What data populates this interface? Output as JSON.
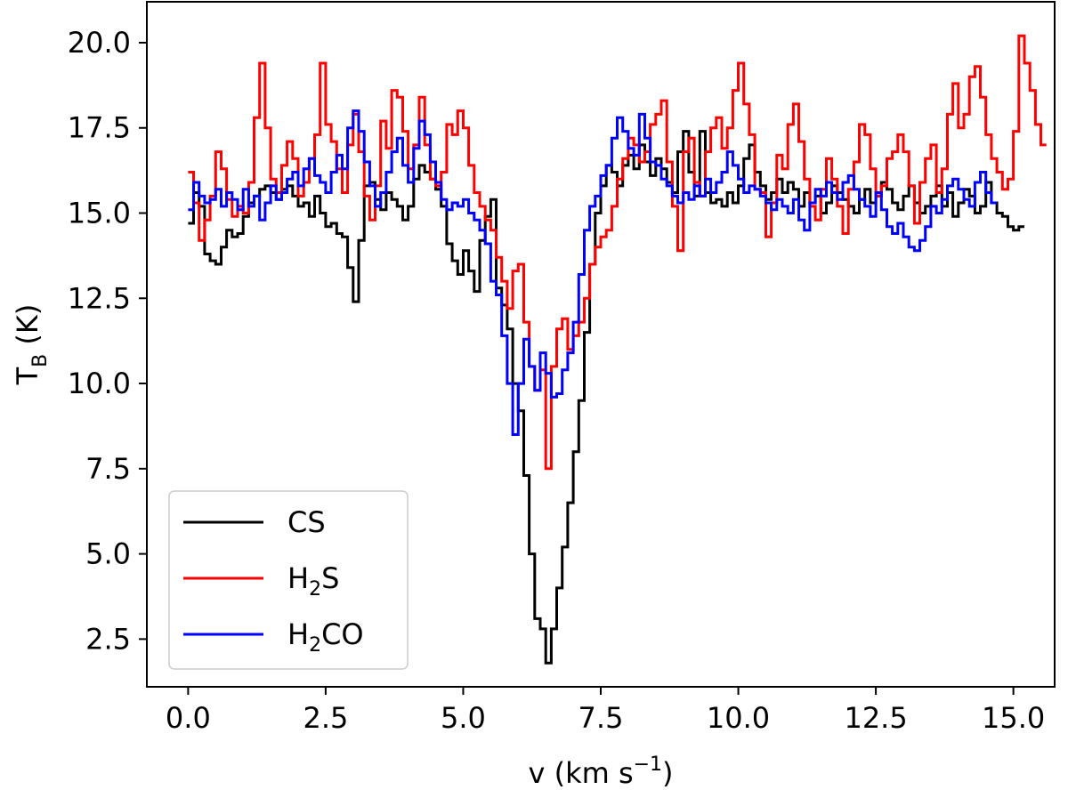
{
  "chart_data": {
    "type": "line",
    "step": true,
    "title": "",
    "xlabel": "v (km s",
    "xlabel_sup": "−1",
    "xlabel_close": ")",
    "ylabel": "T",
    "ylabel_sub": "B",
    "ylabel_tail": " (K)",
    "xlim": [
      -0.75,
      15.75
    ],
    "ylim": [
      1.1,
      21.2
    ],
    "xticks": [
      0.0,
      2.5,
      5.0,
      7.5,
      10.0,
      12.5,
      15.0
    ],
    "xtick_labels": [
      "0.0",
      "2.5",
      "5.0",
      "7.5",
      "10.0",
      "12.5",
      "15.0"
    ],
    "yticks": [
      2.5,
      5.0,
      7.5,
      10.0,
      12.5,
      15.0,
      17.5,
      20.0
    ],
    "ytick_labels": [
      "2.5",
      "5.0",
      "7.5",
      "10.0",
      "12.5",
      "15.0",
      "17.5",
      "20.0"
    ],
    "grid": false,
    "legend_position": "bottom-left",
    "x_start": 0.0,
    "x_step": 0.1,
    "series": [
      {
        "name": "CS",
        "label_main": "CS",
        "label_sub": "",
        "label_tail": "",
        "color": "#000000",
        "values": [
          14.7,
          15.6,
          15.2,
          13.8,
          13.6,
          13.5,
          14.0,
          14.5,
          14.3,
          14.4,
          14.9,
          15.3,
          15.5,
          15.7,
          15.8,
          15.6,
          15.4,
          15.7,
          15.8,
          15.5,
          15.2,
          15.3,
          14.9,
          15.5,
          15.0,
          14.6,
          14.7,
          14.4,
          14.3,
          13.4,
          12.4,
          14.2,
          15.8,
          15.9,
          15.4,
          15.1,
          15.6,
          15.4,
          15.2,
          14.8,
          15.2,
          16.0,
          16.4,
          16.2,
          16.0,
          15.7,
          15.2,
          14.1,
          13.6,
          13.2,
          13.9,
          13.3,
          12.7,
          14.2,
          14.9,
          15.4,
          12.8,
          12.3,
          11.6,
          10.0,
          9.2,
          7.3,
          5.0,
          3.1,
          2.8,
          1.8,
          2.8,
          4.0,
          5.2,
          6.5,
          8.0,
          9.5,
          11.5,
          13.5,
          15.0,
          15.8,
          16.4,
          16.2,
          15.8,
          16.4,
          16.7,
          16.3,
          17.0,
          16.5,
          16.1,
          16.6,
          16.3,
          15.9,
          15.6,
          16.8,
          17.4,
          16.2,
          15.5,
          17.4,
          15.6,
          15.3,
          15.4,
          15.2,
          15.6,
          15.3,
          15.8,
          16.6,
          17.0,
          16.2,
          15.8,
          15.4,
          15.6,
          16.0,
          15.6,
          15.9,
          15.7,
          15.2,
          15.6,
          15.3,
          15.5,
          15.0,
          15.3,
          15.8,
          15.6,
          15.4,
          15.2,
          15.0,
          15.4,
          15.7,
          15.3,
          15.5,
          15.9,
          15.7,
          15.3,
          15.1,
          15.5,
          15.8,
          15.3,
          15.0,
          15.2,
          15.5,
          15.8,
          15.2,
          15.6,
          14.9,
          15.3,
          15.7,
          15.5,
          15.0,
          15.2,
          15.9,
          15.3,
          15.0,
          14.9,
          14.6,
          14.5,
          14.6
        ]
      },
      {
        "name": "H2S",
        "label_main": "H",
        "label_sub": "2",
        "label_tail": "S",
        "color": "#ff0000",
        "values": [
          16.2,
          15.3,
          14.2,
          14.8,
          15.5,
          16.8,
          16.3,
          15.4,
          14.9,
          15.2,
          15.0,
          15.9,
          17.8,
          19.4,
          17.5,
          16.0,
          15.6,
          16.4,
          17.1,
          16.6,
          15.5,
          15.9,
          16.6,
          17.3,
          19.4,
          17.6,
          17.1,
          16.3,
          15.6,
          17.0,
          17.9,
          16.8,
          15.5,
          14.8,
          15.8,
          17.7,
          16.9,
          18.6,
          18.4,
          17.4,
          16.3,
          17.0,
          18.4,
          17.0,
          16.0,
          15.8,
          16.2,
          17.6,
          17.3,
          18.0,
          17.5,
          16.4,
          15.6,
          15.2,
          14.8,
          14.5,
          13.7,
          13.0,
          12.2,
          13.3,
          13.5,
          11.8,
          10.5,
          9.8,
          10.4,
          7.5,
          10.5,
          11.6,
          11.9,
          11.0,
          11.4,
          11.8,
          12.5,
          13.5,
          14.0,
          14.3,
          14.5,
          15.2,
          16.0,
          16.6,
          17.2,
          17.0,
          16.5,
          16.8,
          17.6,
          17.9,
          18.3,
          16.5,
          15.2,
          13.9,
          16.8,
          17.2,
          15.9,
          15.5,
          16.8,
          17.5,
          17.8,
          16.9,
          17.5,
          18.6,
          19.4,
          18.2,
          17.3,
          15.7,
          15.6,
          14.3,
          15.3,
          16.7,
          16.3,
          17.6,
          18.2,
          17.1,
          16.0,
          15.2,
          14.8,
          15.7,
          16.6,
          16.0,
          15.2,
          14.4,
          15.7,
          16.5,
          17.6,
          17.3,
          16.3,
          15.5,
          15.8,
          16.6,
          16.8,
          17.3,
          16.8,
          15.8,
          14.7,
          15.9,
          16.6,
          17.0,
          15.6,
          16.3,
          17.9,
          18.8,
          17.5,
          17.9,
          19.0,
          19.3,
          18.4,
          17.3,
          16.6,
          16.2,
          15.7,
          16.0,
          17.4,
          20.2,
          19.4,
          18.6,
          17.6,
          17.0
        ]
      },
      {
        "name": "H2CO",
        "label_main": "H",
        "label_sub": "2",
        "label_tail": "CO",
        "color": "#0000ff",
        "values": [
          15.1,
          15.9,
          15.5,
          15.3,
          15.4,
          15.7,
          15.2,
          15.6,
          15.4,
          15.1,
          15.7,
          15.2,
          15.5,
          14.8,
          15.3,
          15.8,
          15.4,
          15.6,
          16.0,
          16.2,
          15.8,
          16.3,
          16.6,
          16.1,
          15.9,
          15.6,
          16.2,
          16.7,
          16.3,
          17.5,
          18.0,
          17.4,
          16.5,
          15.8,
          15.2,
          15.6,
          16.2,
          16.8,
          17.2,
          16.4,
          15.9,
          16.9,
          17.7,
          17.3,
          16.5,
          15.9,
          15.4,
          15.1,
          15.3,
          15.2,
          15.4,
          15.0,
          14.8,
          14.5,
          14.1,
          13.0,
          12.6,
          11.4,
          10.0,
          8.5,
          10.0,
          11.3,
          10.5,
          9.8,
          10.9,
          10.3,
          9.6,
          9.7,
          10.4,
          10.9,
          11.8,
          13.2,
          14.5,
          15.2,
          15.5,
          16.1,
          16.4,
          17.2,
          17.8,
          17.4,
          16.9,
          16.7,
          17.9,
          17.2,
          16.5,
          16.4,
          16.0,
          15.8,
          15.5,
          15.3,
          15.6,
          15.4,
          15.8,
          15.5,
          16.0,
          15.6,
          15.9,
          16.2,
          16.8,
          16.4,
          16.0,
          15.6,
          15.8,
          15.7,
          15.5,
          15.3,
          15.1,
          15.4,
          15.2,
          15.0,
          15.4,
          14.8,
          14.5,
          15.3,
          15.7,
          15.5,
          15.9,
          15.6,
          15.4,
          15.9,
          16.1,
          15.7,
          15.4,
          15.2,
          14.9,
          15.6,
          15.1,
          14.6,
          14.4,
          14.7,
          14.3,
          14.0,
          13.9,
          14.2,
          14.6,
          15.2,
          15.0,
          15.4,
          15.8,
          16.0,
          15.7,
          15.4,
          15.2,
          15.9,
          16.2,
          15.6,
          15.3
        ]
      }
    ]
  }
}
